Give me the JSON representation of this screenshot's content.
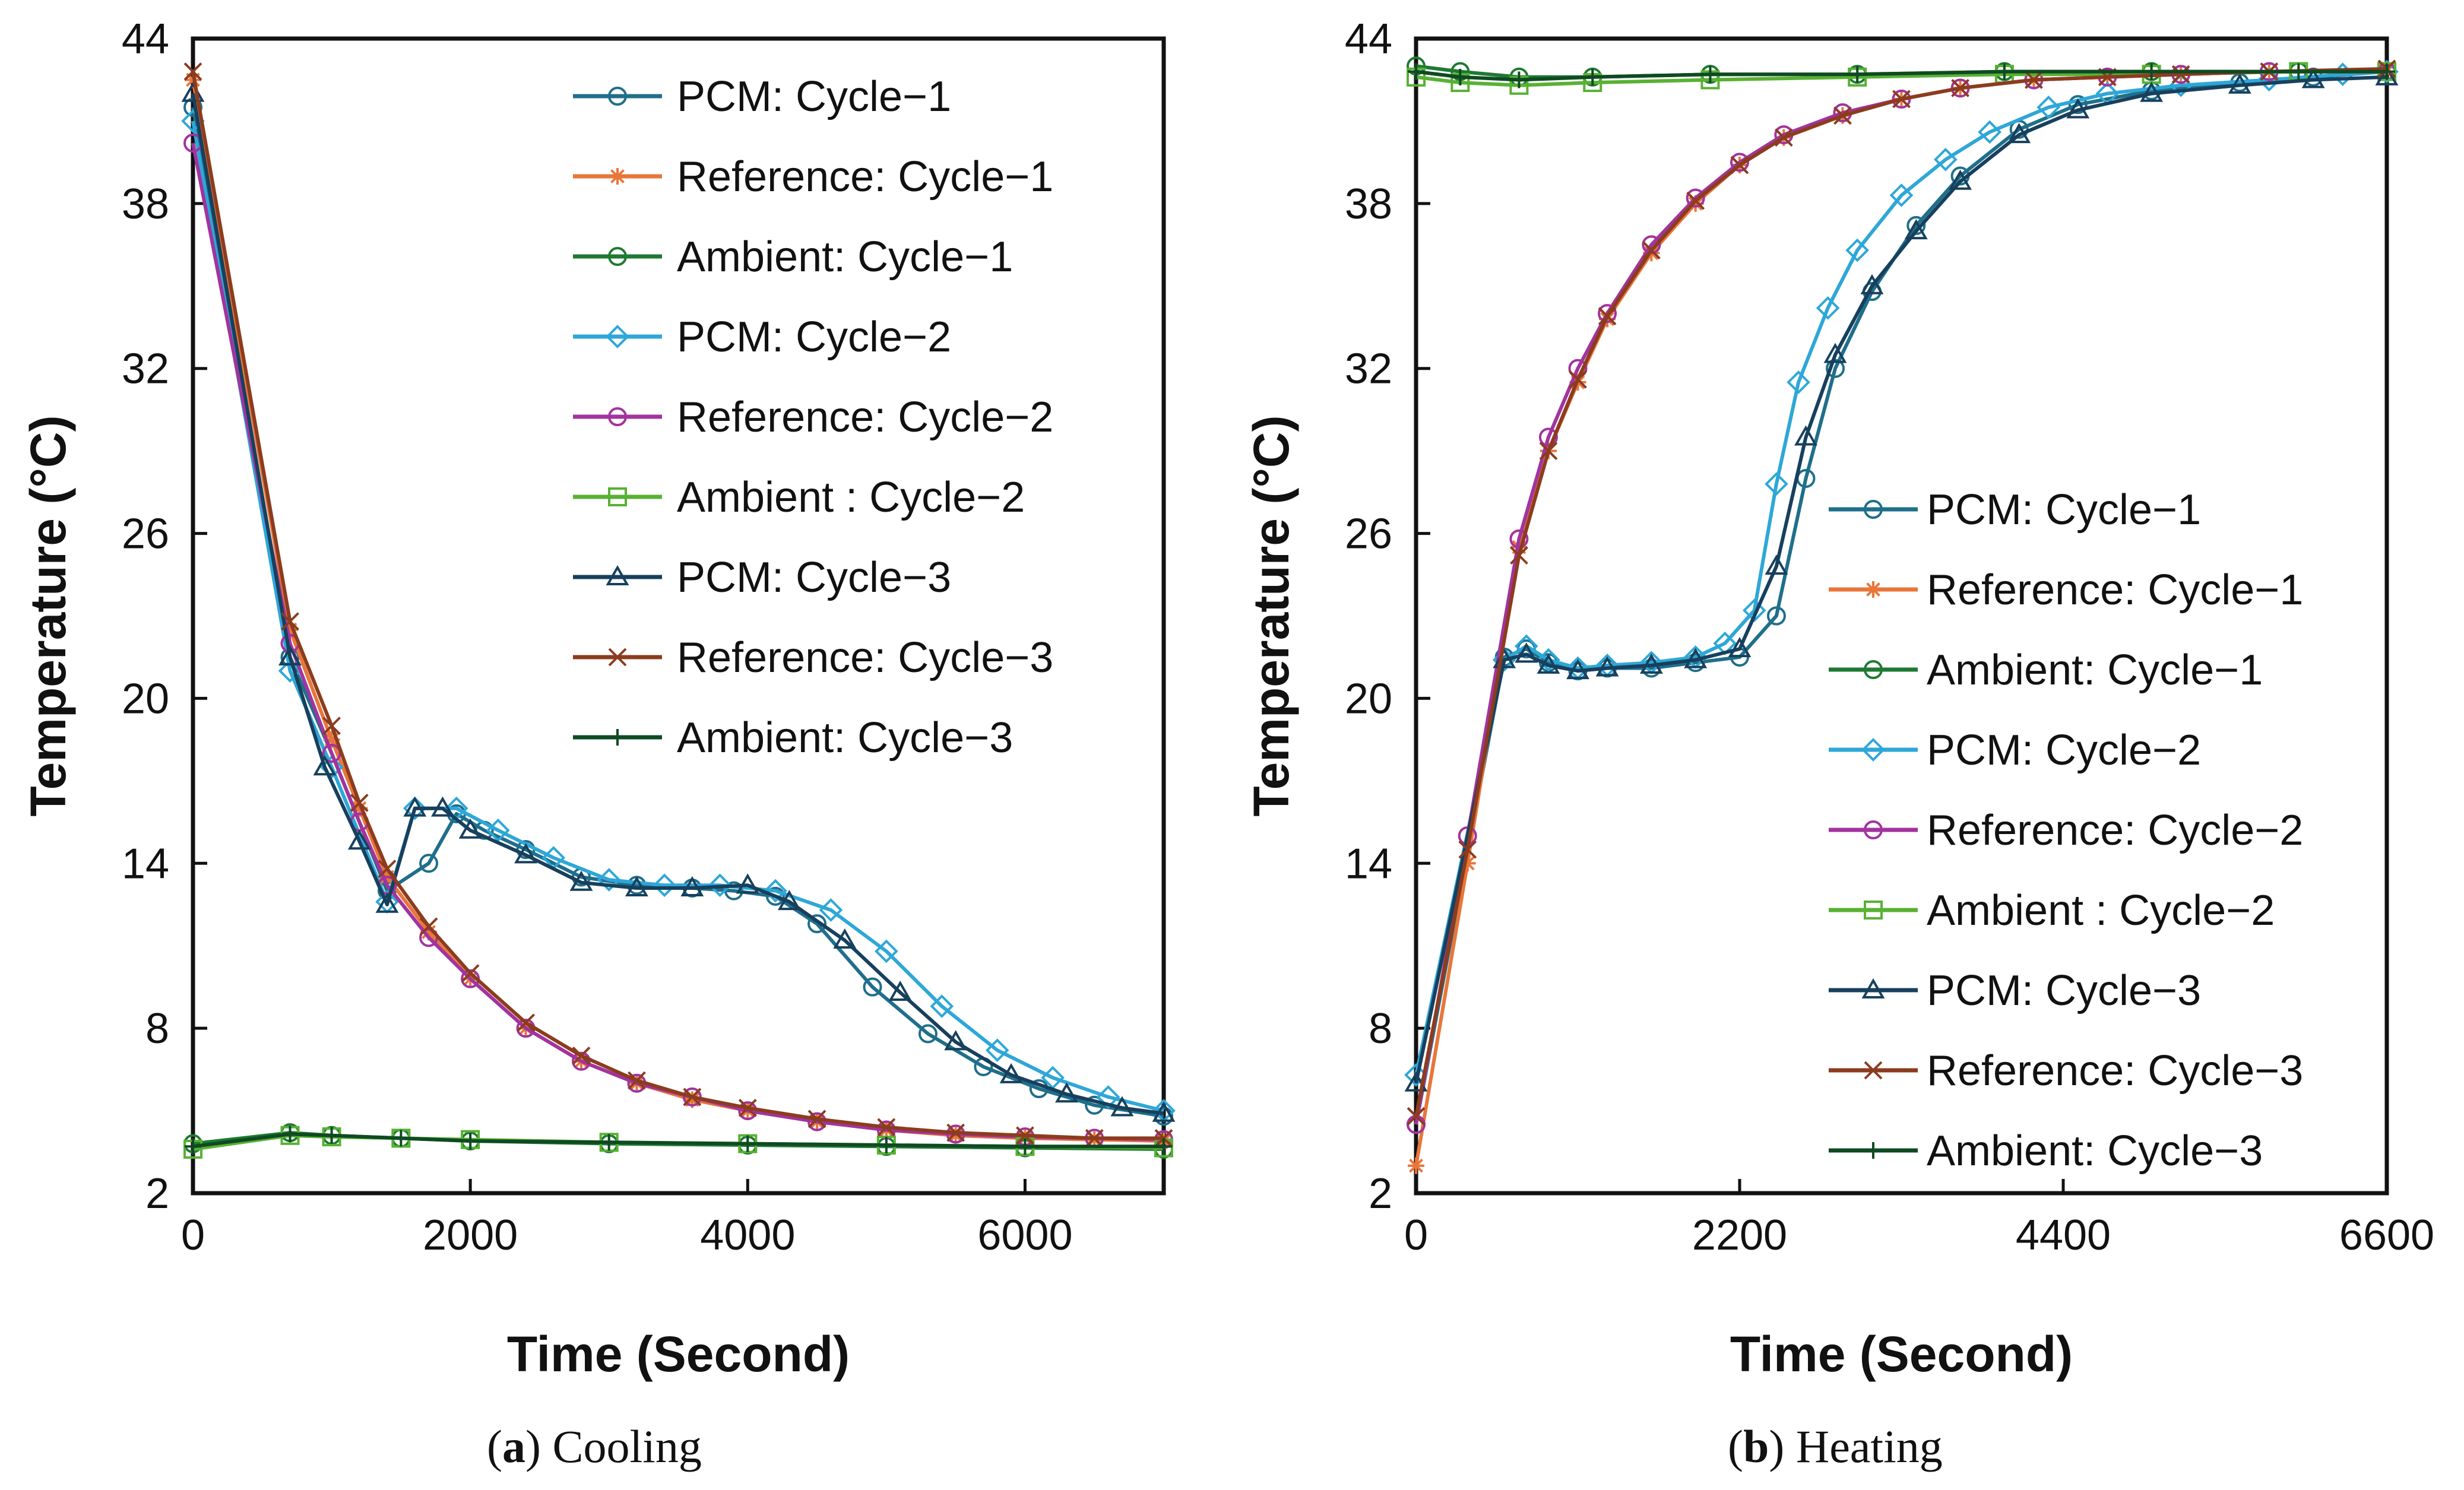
{
  "captions": [
    {
      "letter": "a",
      "text": "Cooling"
    },
    {
      "letter": "b",
      "text": "Heating"
    }
  ],
  "chart_data": [
    {
      "type": "line",
      "title": "(a) Cooling",
      "xlabel": "Time (Second)",
      "ylabel": "Temperature (°C)",
      "xlim": [
        0,
        7000
      ],
      "ylim": [
        2,
        44
      ],
      "xticks": [
        0,
        2000,
        4000,
        6000
      ],
      "yticks": [
        2,
        8,
        14,
        20,
        26,
        32,
        38,
        44
      ],
      "legend_position": "top-right",
      "series": [
        {
          "name": "PCM: Cycle−1",
          "color": "#1f6f8b",
          "marker": "circle",
          "x": [
            0,
            700,
            1000,
            1400,
            1700,
            1900,
            2100,
            2400,
            2800,
            3200,
            3600,
            3900,
            4200,
            4500,
            4900,
            5300,
            5700,
            6100,
            6500,
            7000
          ],
          "y": [
            41.5,
            21.5,
            18,
            13,
            14,
            15.8,
            15.2,
            14.5,
            13.5,
            13.2,
            13.1,
            13,
            12.8,
            11.8,
            9.5,
            7.8,
            6.6,
            5.8,
            5.2,
            4.8
          ]
        },
        {
          "name": "Reference: Cycle−1",
          "color": "#e8763a",
          "marker": "asterisk",
          "x": [
            0,
            700,
            1000,
            1200,
            1400,
            1700,
            2000,
            2400,
            2800,
            3200,
            3600,
            4000,
            4500,
            5000,
            5500,
            6000,
            6500,
            7000
          ],
          "y": [
            42.5,
            22.5,
            18.5,
            16,
            13.5,
            11.5,
            9.8,
            8,
            6.8,
            6,
            5.4,
            5,
            4.6,
            4.3,
            4.1,
            4,
            3.95,
            3.9
          ]
        },
        {
          "name": "Ambient: Cycle−1",
          "color": "#1e7a32",
          "marker": "circle",
          "x": [
            0,
            700,
            1000,
            1500,
            2000,
            3000,
            4000,
            5000,
            6000,
            7000
          ],
          "y": [
            3.8,
            4.2,
            4.1,
            4,
            3.9,
            3.8,
            3.75,
            3.7,
            3.65,
            3.6
          ]
        },
        {
          "name": "PCM: Cycle−2",
          "color": "#2ea7d8",
          "marker": "diamond",
          "x": [
            0,
            700,
            1000,
            1400,
            1600,
            1900,
            2200,
            2600,
            3000,
            3400,
            3800,
            4200,
            4600,
            5000,
            5400,
            5800,
            6200,
            6600,
            7000
          ],
          "y": [
            41,
            21,
            17.5,
            12.6,
            16,
            16,
            15.2,
            14.2,
            13.4,
            13.2,
            13.2,
            13,
            12.3,
            10.8,
            8.8,
            7.2,
            6.2,
            5.5,
            5
          ]
        },
        {
          "name": "Reference: Cycle−2",
          "color": "#a2339f",
          "marker": "circle",
          "x": [
            0,
            700,
            1000,
            1200,
            1400,
            1700,
            2000,
            2400,
            2800,
            3200,
            3600,
            4000,
            4500,
            5000,
            5500,
            6000,
            6500,
            7000
          ],
          "y": [
            40.2,
            22,
            18,
            15.5,
            13.2,
            11.3,
            9.8,
            8,
            6.8,
            6,
            5.5,
            5,
            4.6,
            4.3,
            4.15,
            4.05,
            4,
            3.95
          ]
        },
        {
          "name": "Ambient : Cycle−2",
          "color": "#58b133",
          "marker": "square",
          "x": [
            0,
            700,
            1000,
            1500,
            2000,
            3000,
            4000,
            5000,
            6000,
            7000
          ],
          "y": [
            3.6,
            4.1,
            4.05,
            4,
            3.95,
            3.85,
            3.8,
            3.75,
            3.7,
            3.65
          ]
        },
        {
          "name": "PCM: Cycle−3",
          "color": "#17405d",
          "marker": "triangle",
          "x": [
            0,
            700,
            950,
            1200,
            1400,
            1600,
            1800,
            2000,
            2400,
            2800,
            3200,
            3600,
            4000,
            4300,
            4700,
            5100,
            5500,
            5900,
            6300,
            6700,
            7000
          ],
          "y": [
            42,
            21.5,
            17.5,
            14.8,
            12.5,
            16,
            16,
            15.2,
            14.3,
            13.3,
            13.1,
            13.1,
            13.2,
            12.6,
            11.2,
            9.3,
            7.5,
            6.3,
            5.6,
            5.1,
            4.9
          ]
        },
        {
          "name": "Reference: Cycle−3",
          "color": "#8c3c1e",
          "marker": "x",
          "x": [
            0,
            700,
            1000,
            1200,
            1400,
            1700,
            2000,
            2400,
            2800,
            3200,
            3600,
            4000,
            4500,
            5000,
            5500,
            6000,
            6500,
            7000
          ],
          "y": [
            42.8,
            22.8,
            19,
            16.2,
            13.8,
            11.7,
            10,
            8.2,
            7,
            6.1,
            5.5,
            5.1,
            4.7,
            4.4,
            4.2,
            4.1,
            4.0,
            4.0
          ]
        },
        {
          "name": "Ambient: Cycle−3",
          "color": "#0e4a22",
          "marker": "plus",
          "x": [
            0,
            700,
            1000,
            1500,
            2000,
            3000,
            4000,
            5000,
            6000,
            7000
          ],
          "y": [
            3.7,
            4.15,
            4.1,
            4.0,
            3.9,
            3.85,
            3.8,
            3.75,
            3.7,
            3.7
          ]
        }
      ]
    },
    {
      "type": "line",
      "title": "(b) Heating",
      "xlabel": "Time (Second)",
      "ylabel": "Temperature (°C)",
      "xlim": [
        0,
        6600
      ],
      "ylim": [
        2,
        44
      ],
      "xticks": [
        0,
        2200,
        4400,
        6600
      ],
      "yticks": [
        2,
        8,
        14,
        20,
        26,
        32,
        38,
        44
      ],
      "legend_position": "center-right",
      "series": [
        {
          "name": "PCM: Cycle−1",
          "color": "#1f6f8b",
          "marker": "circle",
          "x": [
            0,
            600,
            750,
            900,
            1100,
            1300,
            1600,
            1900,
            2200,
            2450,
            2650,
            2850,
            3100,
            3400,
            3700,
            4100,
            4500,
            5000,
            5600,
            6100,
            6600
          ],
          "y": [
            4.5,
            21.5,
            21.8,
            21.3,
            21,
            21.1,
            21.1,
            21.3,
            21.5,
            23,
            28,
            32,
            34.8,
            37.2,
            39,
            40.7,
            41.6,
            42.1,
            42.4,
            42.6,
            42.8
          ]
        },
        {
          "name": "Reference: Cycle−1",
          "color": "#e8763a",
          "marker": "asterisk",
          "x": [
            0,
            350,
            700,
            900,
            1100,
            1300,
            1600,
            1900,
            2200,
            2500,
            2900,
            3300,
            3700,
            4200,
            4700,
            5200,
            5800,
            6600
          ],
          "y": [
            3,
            14,
            25.5,
            29,
            31.5,
            33.8,
            36.2,
            38,
            39.4,
            40.4,
            41.2,
            41.8,
            42.2,
            42.5,
            42.6,
            42.7,
            42.8,
            42.8
          ]
        },
        {
          "name": "Ambient: Cycle−1",
          "color": "#1e7a32",
          "marker": "circle",
          "x": [
            0,
            300,
            700,
            1200,
            2000,
            3000,
            4000,
            5000,
            6000,
            6600
          ],
          "y": [
            43,
            42.8,
            42.6,
            42.6,
            42.7,
            42.7,
            42.8,
            42.8,
            42.8,
            42.8
          ]
        },
        {
          "name": "PCM: Cycle−2",
          "color": "#2ea7d8",
          "marker": "diamond",
          "x": [
            0,
            600,
            750,
            900,
            1100,
            1300,
            1600,
            1900,
            2100,
            2300,
            2450,
            2600,
            2800,
            3000,
            3300,
            3600,
            3900,
            4300,
            4700,
            5200,
            5800,
            6300,
            6600
          ],
          "y": [
            6.3,
            21.4,
            21.9,
            21.4,
            21.1,
            21.2,
            21.3,
            21.5,
            22,
            23.2,
            27.8,
            31.5,
            34.2,
            36.3,
            38.3,
            39.6,
            40.6,
            41.5,
            42,
            42.3,
            42.5,
            42.7,
            42.8
          ]
        },
        {
          "name": "Reference: Cycle−2",
          "color": "#a2339f",
          "marker": "circle",
          "x": [
            0,
            350,
            700,
            900,
            1100,
            1300,
            1600,
            1900,
            2200,
            2500,
            2900,
            3300,
            3700,
            4200,
            4700,
            5200,
            5800,
            6600
          ],
          "y": [
            4.5,
            15,
            25.8,
            29.5,
            32,
            34,
            36.5,
            38.2,
            39.5,
            40.5,
            41.3,
            41.8,
            42.2,
            42.5,
            42.6,
            42.7,
            42.8,
            42.8
          ]
        },
        {
          "name": "Ambient : Cycle−2",
          "color": "#58b133",
          "marker": "square",
          "x": [
            0,
            300,
            700,
            1200,
            2000,
            3000,
            4000,
            5000,
            6000,
            6600
          ],
          "y": [
            42.6,
            42.4,
            42.3,
            42.4,
            42.5,
            42.6,
            42.7,
            42.7,
            42.8,
            42.8
          ]
        },
        {
          "name": "PCM: Cycle−3",
          "color": "#17405d",
          "marker": "triangle",
          "x": [
            0,
            600,
            750,
            900,
            1100,
            1300,
            1600,
            1900,
            2200,
            2450,
            2650,
            2850,
            3100,
            3400,
            3700,
            4100,
            4500,
            5000,
            5600,
            6100,
            6600
          ],
          "y": [
            6,
            21.4,
            21.6,
            21.2,
            21,
            21.1,
            21.2,
            21.4,
            21.8,
            24.8,
            29.5,
            32.5,
            35,
            37,
            38.8,
            40.5,
            41.4,
            42,
            42.3,
            42.5,
            42.6
          ]
        },
        {
          "name": "Reference: Cycle−3",
          "color": "#8c3c1e",
          "marker": "x",
          "x": [
            0,
            350,
            700,
            900,
            1100,
            1300,
            1600,
            1900,
            2200,
            2500,
            2900,
            3300,
            3700,
            4200,
            4700,
            5200,
            5800,
            6600
          ],
          "y": [
            4.8,
            14.5,
            25.2,
            29,
            31.6,
            33.9,
            36.3,
            38.1,
            39.4,
            40.4,
            41.2,
            41.8,
            42.2,
            42.5,
            42.6,
            42.7,
            42.8,
            42.9
          ]
        },
        {
          "name": "Ambient: Cycle−3",
          "color": "#0e4a22",
          "marker": "plus",
          "x": [
            0,
            300,
            700,
            1200,
            2000,
            3000,
            4000,
            5000,
            6000,
            6600
          ],
          "y": [
            42.8,
            42.6,
            42.5,
            42.6,
            42.7,
            42.7,
            42.8,
            42.8,
            42.8,
            42.8
          ]
        }
      ]
    }
  ]
}
